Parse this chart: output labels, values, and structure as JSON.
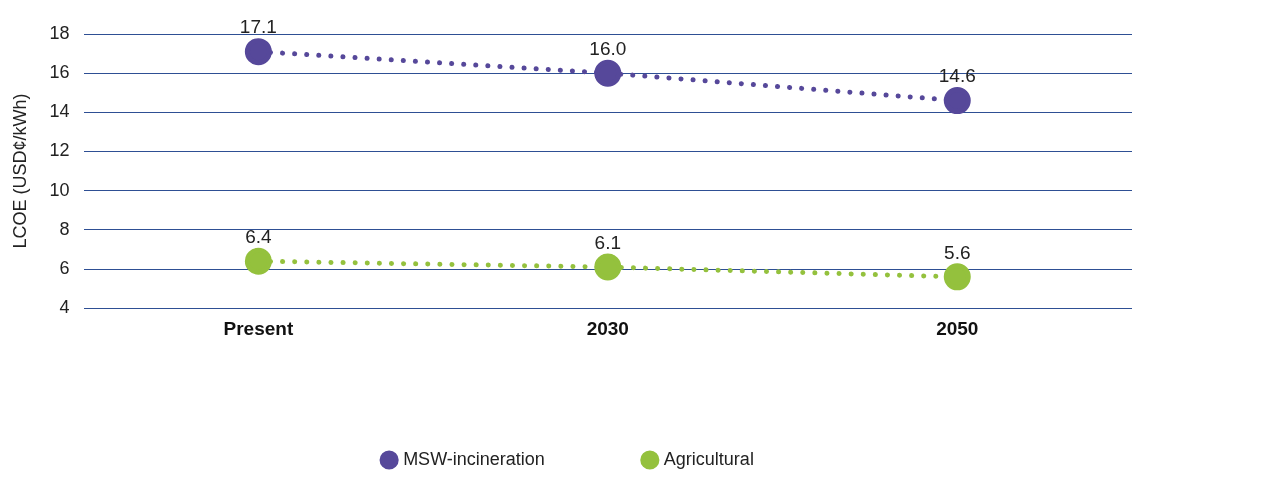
{
  "chart_data": {
    "type": "line",
    "ylabel": "LCOE (USD¢/kWh)",
    "categories": [
      "Present",
      "2030",
      "2050"
    ],
    "series": [
      {
        "name": "MSW-incineration",
        "color": "#56489a",
        "values": [
          17.1,
          16.0,
          14.6
        ],
        "value_labels": [
          "17.1",
          "16.0",
          "14.6"
        ]
      },
      {
        "name": "Agricultural",
        "color": "#94c13d",
        "values": [
          6.4,
          6.1,
          5.6
        ],
        "value_labels": [
          "6.4",
          "6.1",
          "5.6"
        ]
      }
    ],
    "ylim": [
      4,
      18
    ],
    "yticks": [
      4,
      6,
      8,
      10,
      12,
      14,
      16,
      18
    ],
    "grid": "y",
    "legend": "bottom",
    "marker": "circle",
    "line_style": "dotted"
  }
}
